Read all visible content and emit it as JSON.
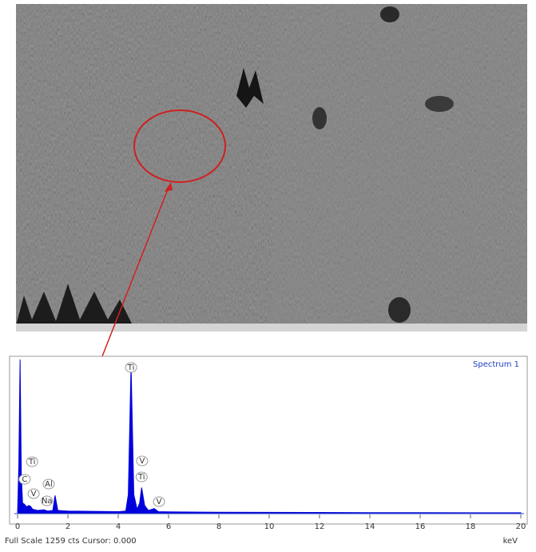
{
  "chart_data": {
    "type": "area",
    "x": [
      0,
      0.05,
      0.1,
      0.15,
      0.2,
      0.28,
      0.35,
      0.45,
      0.51,
      0.6,
      0.8,
      1.04,
      1.2,
      1.4,
      1.49,
      1.6,
      2,
      3,
      4,
      4.3,
      4.4,
      4.51,
      4.62,
      4.75,
      4.85,
      4.93,
      5.05,
      5.2,
      5.43,
      5.6,
      6,
      8,
      10,
      12,
      14,
      16,
      18,
      20
    ],
    "series": [
      {
        "name": "Spectrum 1",
        "color": "#0000dd",
        "values": [
          0,
          400,
          1259,
          300,
          80,
          70,
          50,
          60,
          55,
          30,
          20,
          25,
          15,
          20,
          143,
          20,
          15,
          12,
          10,
          15,
          150,
          1213,
          150,
          30,
          80,
          208,
          60,
          20,
          35,
          10,
          8,
          5,
          4,
          3,
          2,
          2,
          1,
          1
        ]
      }
    ],
    "xlim": [
      0,
      20
    ],
    "ylim": [
      0,
      1259
    ],
    "xticks": [
      0,
      2,
      4,
      6,
      8,
      10,
      12,
      14,
      16,
      18,
      20
    ],
    "xlabel": "keV",
    "footer": "Full Scale 1259 cts Cursor: 0.000",
    "annotations": [
      {
        "text": "Ti",
        "x": 4.51
      },
      {
        "text": "V",
        "x": 4.95
      },
      {
        "text": "Ti",
        "x": 4.93
      },
      {
        "text": "V",
        "x": 5.43
      },
      {
        "text": "Ti",
        "x": 0.45
      },
      {
        "text": "C",
        "x": 0.28
      },
      {
        "text": "V",
        "x": 0.51
      },
      {
        "text": "Na",
        "x": 1.04
      },
      {
        "text": "Al",
        "x": 1.49
      }
    ]
  }
}
